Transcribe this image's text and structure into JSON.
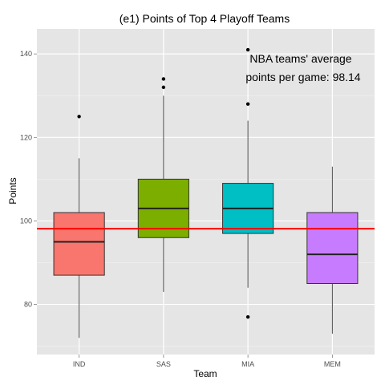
{
  "chart_data": {
    "type": "box",
    "title": "(e1) Points of Top 4 Playoff Teams",
    "xlabel": "Team",
    "ylabel": "Points",
    "ylim": [
      68,
      146
    ],
    "y_ticks": [
      80,
      100,
      120,
      140
    ],
    "y_minor_ticks": [
      70,
      90,
      110,
      130
    ],
    "grid": true,
    "categories": [
      "IND",
      "SAS",
      "MIA",
      "MEM"
    ],
    "boxes": [
      {
        "team": "IND",
        "whisker_low": 72,
        "q1": 87,
        "median": 95,
        "q3": 102,
        "whisker_high": 115,
        "outliers": [
          125
        ],
        "color": "#F8766D"
      },
      {
        "team": "SAS",
        "whisker_low": 83,
        "q1": 96,
        "median": 103,
        "q3": 110,
        "whisker_high": 130,
        "outliers": [
          132,
          134
        ],
        "color": "#7CAE00"
      },
      {
        "team": "MIA",
        "whisker_low": 84,
        "q1": 97,
        "median": 103,
        "q3": 109,
        "whisker_high": 124,
        "outliers": [
          77,
          128,
          141
        ],
        "color": "#00BFC4"
      },
      {
        "team": "MEM",
        "whisker_low": 73,
        "q1": 85,
        "median": 92,
        "q3": 102,
        "whisker_high": 113,
        "outliers": [],
        "color": "#C77CFF"
      }
    ],
    "reference_line": {
      "value": 98.14,
      "color": "#FF0000"
    },
    "annotation": {
      "line1": "NBA teams' average",
      "line2": "points per game: 98.14"
    }
  }
}
